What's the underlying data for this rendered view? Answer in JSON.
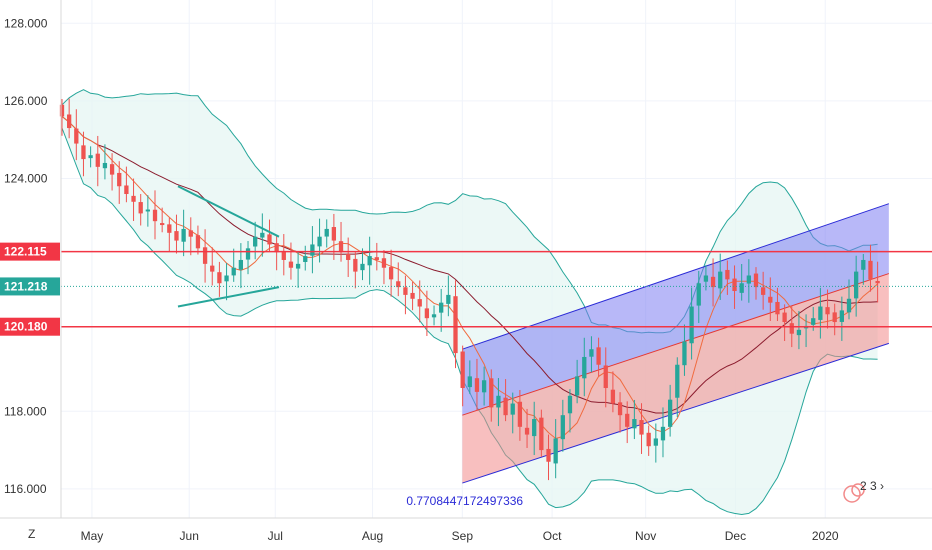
{
  "chart_data": {
    "type": "candlestick",
    "ylim": [
      115.25,
      128.6
    ],
    "x_domain": [
      0,
      232
    ],
    "price_ticks": [
      "128.000",
      "126.000",
      "124.000",
      "118.000",
      "116.000"
    ],
    "price_tick_values": [
      128,
      126,
      124,
      118,
      116
    ],
    "time_ticks": [
      {
        "label": "May",
        "x": 8
      },
      {
        "label": "Jun",
        "x": 34
      },
      {
        "label": "Jul",
        "x": 57
      },
      {
        "label": "Aug",
        "x": 83
      },
      {
        "label": "Sep",
        "x": 107
      },
      {
        "label": "Oct",
        "x": 131
      },
      {
        "label": "Nov",
        "x": 156
      },
      {
        "label": "Dec",
        "x": 180
      },
      {
        "label": "2020",
        "x": 204
      }
    ],
    "closes": [
      125.6,
      125.3,
      124.9,
      124.5,
      124.6,
      124.3,
      124.4,
      124.1,
      123.8,
      123.6,
      123.4,
      123.1,
      123.2,
      122.9,
      122.8,
      122.6,
      122.4,
      122.7,
      122.5,
      122.2,
      121.8,
      121.6,
      121.3,
      121.5,
      121.7,
      121.9,
      122.2,
      122.5,
      122.6,
      122.3,
      122.1,
      121.9,
      121.7,
      121.8,
      122.0,
      122.3,
      122.5,
      122.7,
      122.4,
      122.1,
      121.9,
      121.6,
      121.8,
      122.0,
      121.9,
      121.7,
      121.4,
      121.2,
      121.0,
      120.9,
      120.7,
      120.4,
      120.5,
      120.8,
      121.0,
      119.5,
      118.6,
      118.9,
      118.5,
      118.8,
      118.1,
      118.4,
      117.9,
      118.2,
      117.6,
      117.4,
      117.8,
      117.0,
      116.7,
      117.3,
      117.9,
      118.4,
      118.9,
      119.4,
      119.6,
      119.2,
      118.6,
      118.2,
      117.9,
      117.6,
      117.8,
      117.4,
      117.1,
      117.3,
      117.6,
      118.3,
      119.2,
      119.8,
      120.7,
      121.3,
      121.5,
      121.2,
      121.6,
      121.4,
      121.1,
      121.3,
      121.5,
      121.2,
      121.0,
      120.8,
      120.5,
      120.3,
      120.0,
      120.1,
      120.2,
      120.4,
      120.7,
      120.5,
      120.3,
      120.6,
      120.9,
      121.6,
      121.9,
      121.4,
      121.3
    ],
    "lines": {
      "res_1": {
        "value": 122.115,
        "label": "122.115",
        "color": "#f23645"
      },
      "res_2": {
        "value": 120.18,
        "label": "120.180",
        "color": "#f23645"
      },
      "current": {
        "value": 121.218,
        "label": "121.218",
        "color": "#26a69a"
      }
    },
    "channel": {
      "label": "0.7708447172497336",
      "upper_start": 119.6,
      "upper_end": 123.35,
      "mid_start": 117.9,
      "mid_end": 121.55,
      "lower_start": 116.15,
      "lower_end": 119.75,
      "x_start": 107,
      "x_end": 221
    },
    "triangle": {
      "top": [
        [
          31,
          123.8
        ],
        [
          58,
          122.5
        ]
      ],
      "bottom": [
        [
          31,
          120.7
        ],
        [
          58,
          121.2
        ]
      ]
    },
    "colors": {
      "up": "#26a69a",
      "down": "#ef5350",
      "bands": "#26a69a",
      "band_fill": "#e5f5f3",
      "ma_fast": "#f06b3f",
      "ma_slow": "#8b1c2e",
      "channel_top": "#7d7df2",
      "channel_bottom": "#f28a8a",
      "channel_line": "#2b2bd6",
      "triangle": "#26a69a"
    }
  },
  "ui": {
    "timezone_label": "Z",
    "watermark": "2 3 ›"
  }
}
